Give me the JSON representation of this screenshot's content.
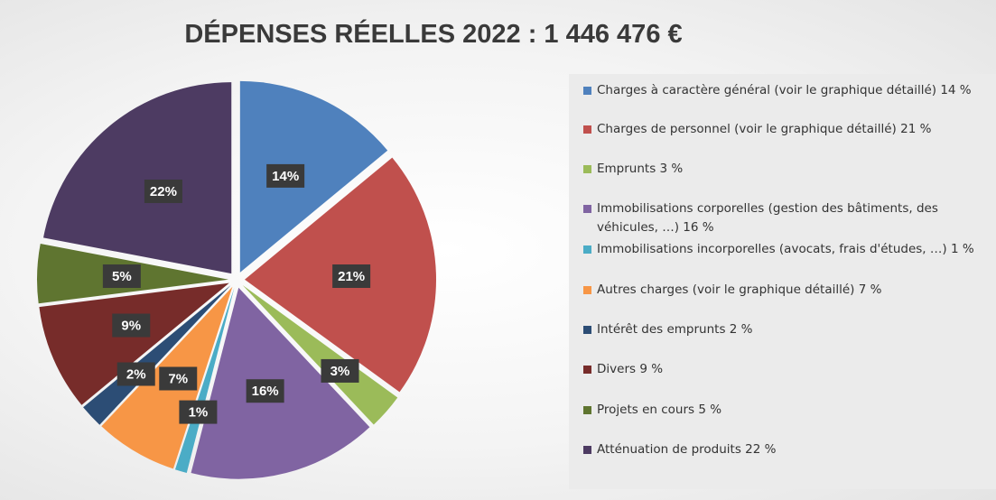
{
  "chart_data": {
    "type": "pie",
    "title": "DÉPENSES RÉELLES 2022 : 1 446 476 €",
    "categories": [
      "Charges à caractère général (voir le graphique détaillé) 14 %",
      "Charges de personnel (voir le graphique détaillé) 21 %",
      "Emprunts 3 %",
      "Immobilisations corporelles (gestion des bâtiments, des véhicules, …)  16 %",
      "Immobilisations incorporelles (avocats, frais d'études, …)  1 %",
      "Autres charges (voir le graphique détaillé) 7 %",
      "Intérêt des emprunts 2 %",
      "Divers 9 %",
      "Projets en cours 5 %",
      "Atténuation de produits 22 %"
    ],
    "values": [
      14,
      21,
      3,
      16,
      1,
      7,
      2,
      9,
      5,
      22
    ],
    "value_labels": [
      "14%",
      "21%",
      "3%",
      "16%",
      "1%",
      "7%",
      "2%",
      "9%",
      "5%",
      "22%"
    ],
    "colors": [
      "#4f81bd",
      "#c0504d",
      "#9bbb59",
      "#8064a2",
      "#4bacc6",
      "#f79646",
      "#2c4d75",
      "#772c2a",
      "#5f7530",
      "#4d3b62"
    ]
  }
}
